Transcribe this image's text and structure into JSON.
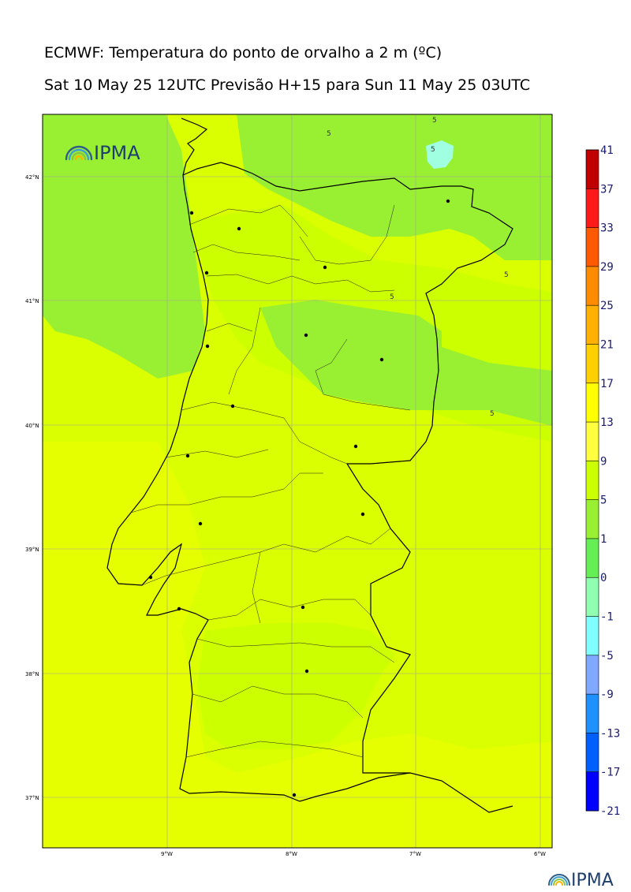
{
  "title": {
    "line1": "ECMWF: Temperatura do ponto de orvalho a 2 m (ºC)",
    "line2": "Sat 10 May 25 12UTC Previsão H+15 para Sun 11 May 25 03UTC"
  },
  "map": {
    "lat_labels": [
      "42°N",
      "41°N",
      "40°N",
      "39°N",
      "38°N",
      "37°N"
    ],
    "lon_labels": [
      "9°W",
      "8°W",
      "7°W",
      "6°W"
    ],
    "contour_labels": [
      "5",
      "5",
      "5",
      "5",
      "5",
      "5"
    ],
    "logo_text": "IPMA",
    "logo_icon": "ipma-rainbow-icon"
  },
  "colorbar": {
    "labels": [
      "41",
      "37",
      "33",
      "29",
      "25",
      "21",
      "17",
      "13",
      "9",
      "5",
      "1",
      "0",
      "-1",
      "-5",
      "-9",
      "-13",
      "-17",
      "-21"
    ],
    "colors": [
      "#c00000",
      "#ff1a1a",
      "#ff5a00",
      "#ff8c00",
      "#ffb000",
      "#ffd000",
      "#ffff00",
      "#ffff40",
      "#ccff00",
      "#99f033",
      "#66ee55",
      "#90ffb0",
      "#80ffff",
      "#80a8ff",
      "#1e90ff",
      "#0060ff",
      "#0000ff",
      "#8a00ff"
    ]
  },
  "footer": {
    "logo_text": "IPMA",
    "logo_icon": "ipma-rainbow-icon"
  },
  "style": {
    "field_base": "#ccff00",
    "field_moist": "#99f033",
    "field_dry": "#e6ff00",
    "field_cold": "#a0ffe0"
  }
}
